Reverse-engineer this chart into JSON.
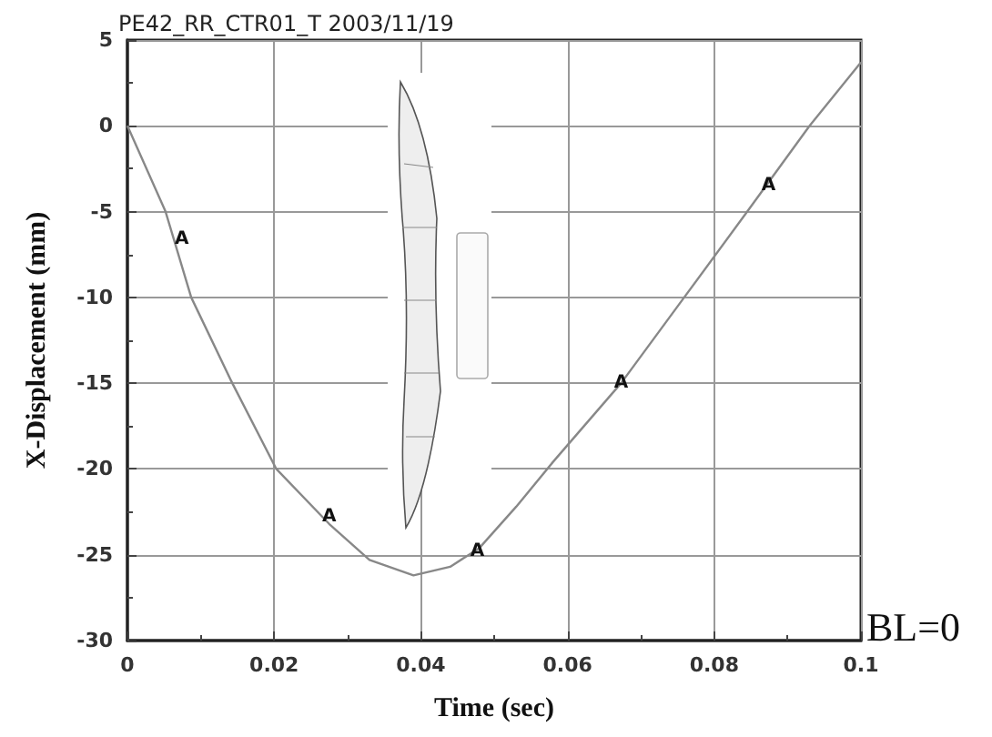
{
  "chart_data": {
    "type": "line",
    "title": "PE42_RR_CTR01_T 2003/11/19",
    "xlabel": "Time (sec)",
    "ylabel": "X-Displacement (mm)",
    "x": [
      0,
      0.0052,
      0.0087,
      0.0143,
      0.0203,
      0.0275,
      0.033,
      0.039,
      0.044,
      0.048,
      0.053,
      0.058,
      0.0673,
      0.0759,
      0.0845,
      0.093,
      0.1
    ],
    "series": [
      {
        "color": "#888888",
        "values": [
          0,
          -5,
          -10,
          -15,
          -20,
          -23.2,
          -25.3,
          -26.2,
          -25.7,
          -24.6,
          -22.2,
          -19.6,
          -15,
          -10,
          -5,
          0,
          3.7
        ]
      }
    ],
    "xlim": [
      0,
      0.1
    ],
    "xticks": [
      0,
      0.02,
      0.04,
      0.06,
      0.08,
      0.1
    ],
    "ylim": [
      -30,
      5
    ],
    "yticks": [
      -30,
      -25,
      -20,
      -15,
      -10,
      -5,
      0,
      5
    ],
    "grid": true,
    "marker": "none",
    "line_style": "solid",
    "annotations": [
      {
        "text": "A",
        "x": 0.0074,
        "y": -6.6
      },
      {
        "text": "A",
        "x": 0.0275,
        "y": -22.8
      },
      {
        "text": "A",
        "x": 0.0477,
        "y": -24.8
      },
      {
        "text": "A",
        "x": 0.0673,
        "y": -15
      },
      {
        "text": "A",
        "x": 0.0874,
        "y": -3.5
      },
      "BL=0"
    ]
  }
}
